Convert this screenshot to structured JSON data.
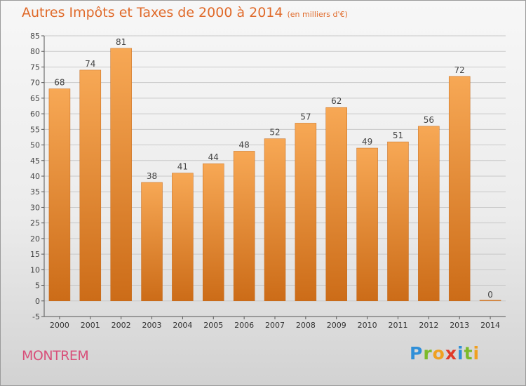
{
  "header": {
    "title": "Autres Impôts et Taxes de 2000 à 2014",
    "subtitle": "(en milliers d'€)"
  },
  "footer": {
    "town": "MONTREM",
    "logo_letters": [
      {
        "char": "P",
        "color": "#2f8fd8"
      },
      {
        "char": "r",
        "color": "#7cba2a"
      },
      {
        "char": "o",
        "color": "#f0a020"
      },
      {
        "char": "x",
        "color": "#e03a2a"
      },
      {
        "char": "i",
        "color": "#2f8fd8"
      },
      {
        "char": "t",
        "color": "#7cba2a"
      },
      {
        "char": "i",
        "color": "#f0a020"
      }
    ]
  },
  "colors": {
    "bar_top": "#f7a855",
    "bar_bottom": "#cc6c18",
    "bar_stroke": "#c56a1c",
    "title": "#e06a2a",
    "town": "#d8507a",
    "grid": "#c8c8c8"
  },
  "chart_data": {
    "type": "bar",
    "title": "Autres Impôts et Taxes de 2000 à 2014",
    "subtitle": "(en milliers d'€)",
    "categories": [
      "2000",
      "2001",
      "2002",
      "2003",
      "2004",
      "2005",
      "2006",
      "2007",
      "2008",
      "2009",
      "2010",
      "2011",
      "2012",
      "2013",
      "2014"
    ],
    "values": [
      68,
      74,
      81,
      38,
      41,
      44,
      48,
      52,
      57,
      62,
      49,
      51,
      56,
      72,
      0
    ],
    "value_labels": [
      "68",
      "74",
      "81",
      "38",
      "41",
      "44",
      "48",
      "52",
      "57",
      "62",
      "49",
      "51",
      "56",
      "72",
      "0"
    ],
    "ylim": [
      -5,
      85
    ],
    "yticks": [
      -5,
      0,
      5,
      10,
      15,
      20,
      25,
      30,
      35,
      40,
      45,
      50,
      55,
      60,
      65,
      70,
      75,
      80,
      85
    ],
    "ytick_labels": [
      "-5",
      "0",
      "5",
      "10",
      "15",
      "20",
      "25",
      "30",
      "35",
      "40",
      "45",
      "50",
      "55",
      "60",
      "65",
      "70",
      "75",
      "80",
      "85"
    ],
    "grid": true,
    "legend": "none"
  }
}
